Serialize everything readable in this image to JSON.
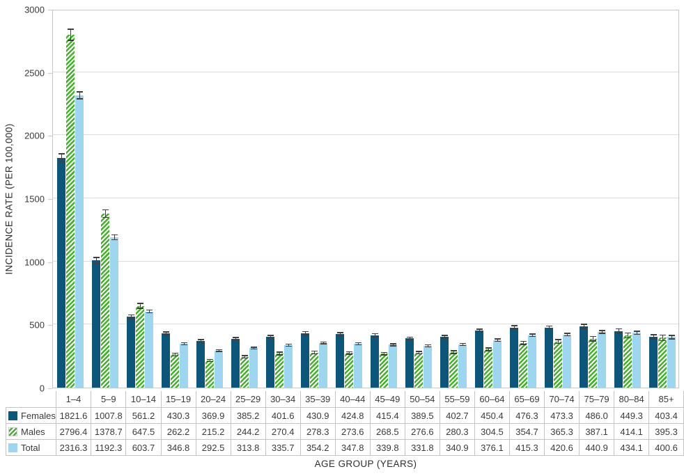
{
  "chart_data": {
    "type": "bar",
    "title": "",
    "xlabel": "AGE GROUP (YEARS)",
    "ylabel": "INCIDENCE RATE (PER 100,000)",
    "ylim": [
      0,
      3000
    ],
    "yticks": [
      0,
      500,
      1000,
      1500,
      2000,
      2500,
      3000
    ],
    "grid": "horizontal",
    "error_bars": true,
    "legend_position": "table-row-headers",
    "categories": [
      "1–4",
      "5–9",
      "10–14",
      "15–19",
      "20–24",
      "25–29",
      "30–34",
      "35–39",
      "40–44",
      "45–49",
      "50–54",
      "55–59",
      "60–64",
      "65–69",
      "70–74",
      "75–79",
      "80–84",
      "85+"
    ],
    "series": [
      {
        "name": "Females",
        "pattern": "solid",
        "color": "#0e5679",
        "values": [
          1821.6,
          1007.8,
          561.2,
          430.3,
          369.9,
          385.2,
          401.6,
          430.9,
          424.8,
          415.4,
          389.5,
          402.7,
          450.4,
          476.3,
          473.3,
          486.0,
          449.3,
          403.4
        ],
        "errors_approx": [
          32,
          24,
          16,
          12,
          11,
          11,
          11,
          12,
          12,
          12,
          11,
          12,
          13,
          14,
          14,
          16,
          17,
          16
        ]
      },
      {
        "name": "Males",
        "pattern": "diagonal-hatch",
        "color": "#45b02c",
        "values": [
          2796.4,
          1378.7,
          647.5,
          262.2,
          215.2,
          244.2,
          270.4,
          278.3,
          273.6,
          268.5,
          276.6,
          280.3,
          304.5,
          354.7,
          365.3,
          387.1,
          414.1,
          395.3
        ],
        "errors_approx": [
          45,
          30,
          19,
          10,
          9,
          10,
          10,
          10,
          10,
          10,
          10,
          11,
          11,
          13,
          14,
          17,
          20,
          22
        ]
      },
      {
        "name": "Total",
        "pattern": "solid",
        "color": "#9ed6f0",
        "values": [
          2316.3,
          1192.3,
          603.7,
          346.8,
          292.5,
          313.8,
          335.7,
          354.2,
          347.8,
          339.8,
          331.8,
          340.9,
          376.1,
          415.3,
          420.6,
          440.9,
          434.1,
          400.6
        ],
        "errors_approx": [
          27,
          19,
          12,
          8,
          7,
          7,
          8,
          8,
          8,
          8,
          8,
          8,
          9,
          10,
          10,
          12,
          13,
          14
        ]
      }
    ]
  },
  "colors": {
    "females_bar": "#0e5679",
    "males_hatch_green": "#45b02c",
    "total_bar": "#9ed6f0",
    "gridline": "#dcdcdc",
    "plot_border": "#c6c6c6",
    "table_border": "#c4c4c4",
    "error_bar": "#3f3f3f",
    "text": "#3a3a3a"
  }
}
